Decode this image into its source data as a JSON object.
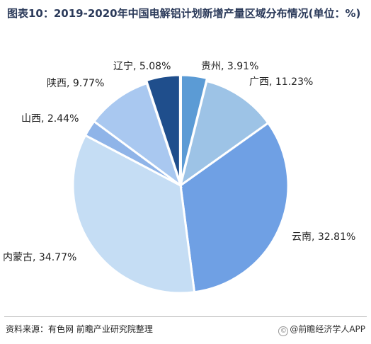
{
  "title": "图表10：2019-2020年中国电解铝计划新增产量区域分布情况(单位：%)",
  "chart_data": {
    "type": "pie",
    "slices": [
      {
        "label": "贵州, 3.91%",
        "value": 3.91,
        "color": "#5b9bd5"
      },
      {
        "label": "广西, 11.23%",
        "value": 11.23,
        "color": "#9dc3e6"
      },
      {
        "label": "云南, 32.81%",
        "value": 32.81,
        "color": "#6fa0e4"
      },
      {
        "label": "内蒙古, 34.77%",
        "value": 34.77,
        "color": "#c5ddf4"
      },
      {
        "label": "山西, 2.44%",
        "value": 2.44,
        "color": "#8fb4e8"
      },
      {
        "label": "陕西, 9.77%",
        "value": 9.77,
        "color": "#a9c8f0"
      },
      {
        "label": "辽宁, 5.08%",
        "value": 5.08,
        "color": "#1f4e8c"
      }
    ]
  },
  "footer": {
    "source": "资料来源：有色网 前瞻产业研究院整理",
    "credit": "@前瞻经济学人APP",
    "credit_icon": "copyright-icon"
  }
}
